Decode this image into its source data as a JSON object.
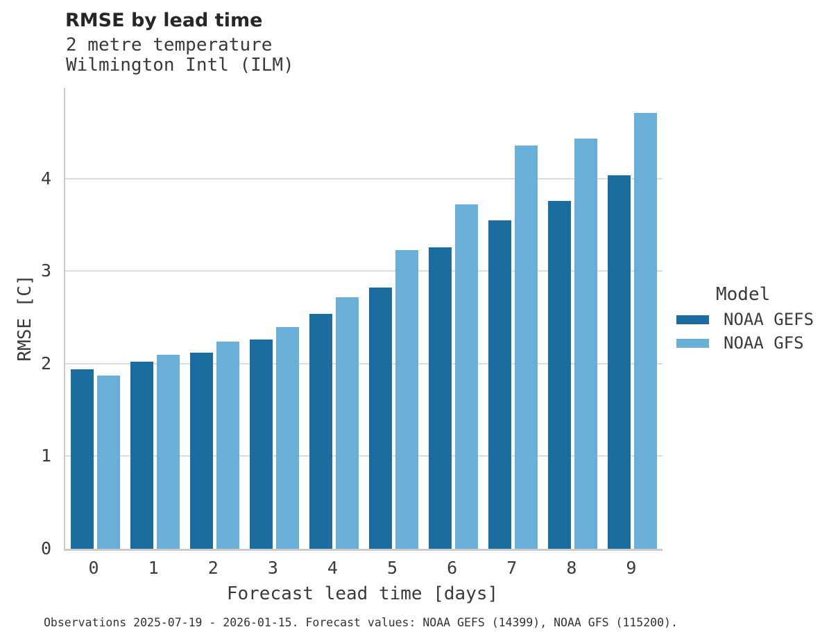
{
  "header": {
    "title": "RMSE by lead time",
    "subtitle_line1": "2 metre temperature",
    "subtitle_line2": "Wilmington Intl (ILM)"
  },
  "chart_data": {
    "type": "bar",
    "title": "RMSE by lead time",
    "subtitle": "2 metre temperature, Wilmington Intl (ILM)",
    "xlabel": "Forecast lead time [days]",
    "ylabel": "RMSE [C]",
    "categories": [
      "0",
      "1",
      "2",
      "3",
      "4",
      "5",
      "6",
      "7",
      "8",
      "9"
    ],
    "series": [
      {
        "name": "NOAA GEFS",
        "color": "#1a6d9e",
        "values": [
          1.94,
          2.02,
          2.12,
          2.26,
          2.54,
          2.82,
          3.26,
          3.55,
          3.76,
          4.04
        ]
      },
      {
        "name": "NOAA GFS",
        "color": "#69afd8",
        "values": [
          1.87,
          2.1,
          2.24,
          2.4,
          2.72,
          3.23,
          3.72,
          4.36,
          4.43,
          4.71
        ]
      }
    ],
    "y_ticks": [
      0,
      1,
      2,
      3,
      4
    ],
    "ylim": [
      0,
      4.98
    ],
    "grid": "horizontal",
    "legend_title": "Model",
    "legend_position": "right"
  },
  "colors": {
    "axis": "#cbcbcb",
    "gridline": "#dcdcdc",
    "title_text": "#262626",
    "body_text": "#3a3a3a"
  },
  "caption": "Observations 2025-07-19 - 2026-01-15. Forecast values: NOAA GEFS (14399), NOAA GFS (115200)."
}
